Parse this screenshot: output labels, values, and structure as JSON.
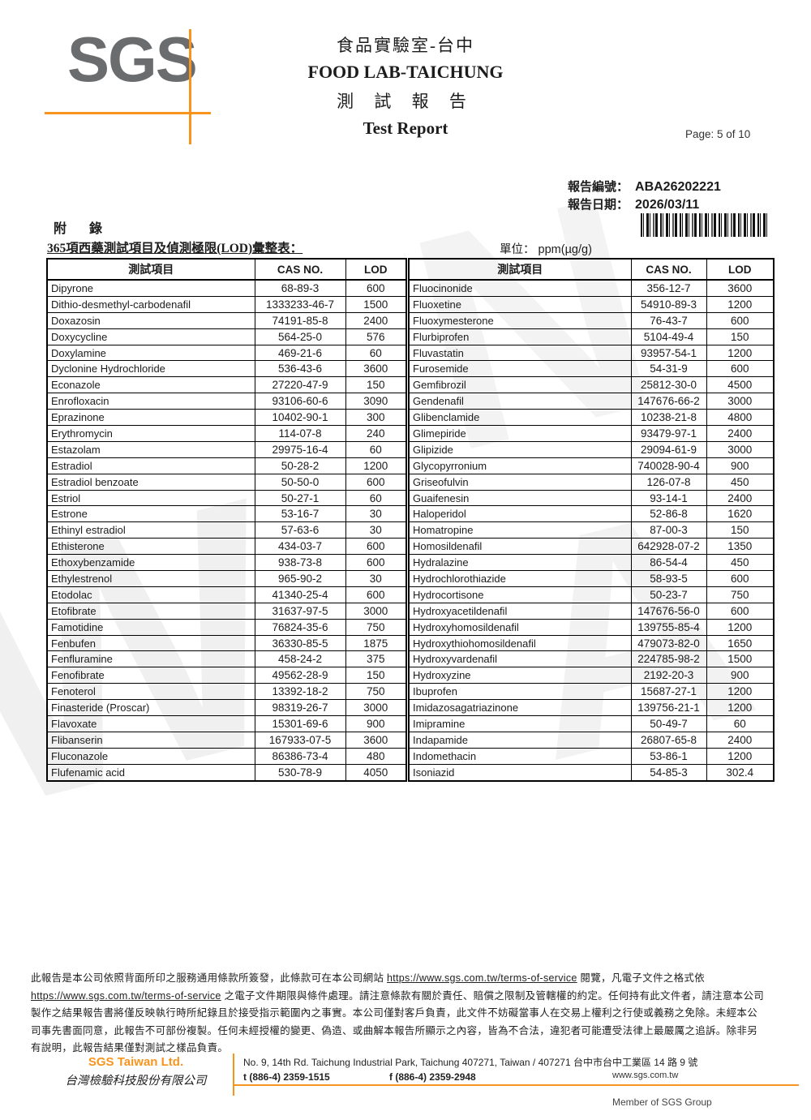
{
  "header": {
    "logo_text": "SGS",
    "lab_name_zh": "食品實驗室-台中",
    "lab_name_en": "FOOD LAB-TAICHUNG",
    "report_title_zh": "測 試 報 告",
    "report_title_en": "Test Report",
    "page_info": "Page: 5 of 10"
  },
  "report_meta": {
    "report_no_label": "報告編號：",
    "report_no": "ABA26202221",
    "report_date_label": "報告日期：",
    "report_date": "2026/03/11"
  },
  "appendix": {
    "section_label": "附 錄",
    "table_title": "365項西藥測試項目及偵測極限(LOD)彙整表：",
    "unit_label": "單位：",
    "unit_value": "ppm(µg/g)"
  },
  "table": {
    "headers": [
      "測試項目",
      "CAS NO.",
      "LOD"
    ],
    "left_rows": [
      [
        "Dipyrone",
        "68-89-3",
        "600"
      ],
      [
        "Dithio-desmethyl-carbodenafil",
        "1333233-46-7",
        "1500"
      ],
      [
        "Doxazosin",
        "74191-85-8",
        "2400"
      ],
      [
        "Doxycycline",
        "564-25-0",
        "576"
      ],
      [
        "Doxylamine",
        "469-21-6",
        "60"
      ],
      [
        "Dyclonine Hydrochloride",
        "536-43-6",
        "3600"
      ],
      [
        "Econazole",
        "27220-47-9",
        "150"
      ],
      [
        "Enrofloxacin",
        "93106-60-6",
        "3090"
      ],
      [
        "Eprazinone",
        "10402-90-1",
        "300"
      ],
      [
        "Erythromycin",
        "114-07-8",
        "240"
      ],
      [
        "Estazolam",
        "29975-16-4",
        "60"
      ],
      [
        "Estradiol",
        "50-28-2",
        "1200"
      ],
      [
        "Estradiol benzoate",
        "50-50-0",
        "600"
      ],
      [
        "Estriol",
        "50-27-1",
        "60"
      ],
      [
        "Estrone",
        "53-16-7",
        "30"
      ],
      [
        "Ethinyl estradiol",
        "57-63-6",
        "30"
      ],
      [
        "Ethisterone",
        "434-03-7",
        "600"
      ],
      [
        "Ethoxybenzamide",
        "938-73-8",
        "600"
      ],
      [
        "Ethylestrenol",
        "965-90-2",
        "30"
      ],
      [
        "Etodolac",
        "41340-25-4",
        "600"
      ],
      [
        "Etofibrate",
        "31637-97-5",
        "3000"
      ],
      [
        "Famotidine",
        "76824-35-6",
        "750"
      ],
      [
        "Fenbufen",
        "36330-85-5",
        "1875"
      ],
      [
        "Fenfluramine",
        "458-24-2",
        "375"
      ],
      [
        "Fenofibrate",
        "49562-28-9",
        "150"
      ],
      [
        "Fenoterol",
        "13392-18-2",
        "750"
      ],
      [
        "Finasteride (Proscar)",
        "98319-26-7",
        "3000"
      ],
      [
        "Flavoxate",
        "15301-69-6",
        "900"
      ],
      [
        "Flibanserin",
        "167933-07-5",
        "3600"
      ],
      [
        "Fluconazole",
        "86386-73-4",
        "480"
      ],
      [
        "Flufenamic acid",
        "530-78-9",
        "4050"
      ]
    ],
    "right_rows": [
      [
        "Fluocinonide",
        "356-12-7",
        "3600"
      ],
      [
        "Fluoxetine",
        "54910-89-3",
        "1200"
      ],
      [
        "Fluoxymesterone",
        "76-43-7",
        "600"
      ],
      [
        "Flurbiprofen",
        "5104-49-4",
        "150"
      ],
      [
        "Fluvastatin",
        "93957-54-1",
        "1200"
      ],
      [
        "Furosemide",
        "54-31-9",
        "600"
      ],
      [
        "Gemfibrozil",
        "25812-30-0",
        "4500"
      ],
      [
        "Gendenafil",
        "147676-66-2",
        "3000"
      ],
      [
        "Glibenclamide",
        "10238-21-8",
        "4800"
      ],
      [
        "Glimepiride",
        "93479-97-1",
        "2400"
      ],
      [
        "Glipizide",
        "29094-61-9",
        "3000"
      ],
      [
        "Glycopyrronium",
        "740028-90-4",
        "900"
      ],
      [
        "Griseofulvin",
        "126-07-8",
        "450"
      ],
      [
        "Guaifenesin",
        "93-14-1",
        "2400"
      ],
      [
        "Haloperidol",
        "52-86-8",
        "1620"
      ],
      [
        "Homatropine",
        "87-00-3",
        "150"
      ],
      [
        "Homosildenafil",
        "642928-07-2",
        "1350"
      ],
      [
        "Hydralazine",
        "86-54-4",
        "450"
      ],
      [
        "Hydrochlorothiazide",
        "58-93-5",
        "600"
      ],
      [
        "Hydrocortisone",
        "50-23-7",
        "750"
      ],
      [
        "Hydroxyacetildenafil",
        "147676-56-0",
        "600"
      ],
      [
        "Hydroxyhomosildenafil",
        "139755-85-4",
        "1200"
      ],
      [
        "Hydroxythiohomosildenafil",
        "479073-82-0",
        "1650"
      ],
      [
        "Hydroxyvardenafil",
        "224785-98-2",
        "1500"
      ],
      [
        "Hydroxyzine",
        "2192-20-3",
        "900"
      ],
      [
        "Ibuprofen",
        "15687-27-1",
        "1200"
      ],
      [
        "Imidazosagatriazinone",
        "139756-21-1",
        "1200"
      ],
      [
        "Imipramine",
        "50-49-7",
        "60"
      ],
      [
        "Indapamide",
        "26807-65-8",
        "2400"
      ],
      [
        "Indomethacin",
        "53-86-1",
        "1200"
      ],
      [
        "Isoniazid",
        "54-85-3",
        "302.4"
      ]
    ]
  },
  "disclaimer": {
    "line1_pre": "此報告是本公司依照背面所印之服務通用條款所簽發，此條款可在本公司網站 ",
    "line1_url": "https://www.sgs.com.tw/terms-of-service",
    "line1_post": " 閱覽，凡電子文件之格式依",
    "line2_url": "https://www.sgs.com.tw/terms-of-service",
    "line2_post": " 之電子文件期限與條件處理。請注意條款有關於責任、賠償之限制及管轄權的約定。任何持有此文件者，請注意本公司",
    "line3": "製作之結果報告書將僅反映執行時所紀錄且於接受指示範圍內之事實。本公司僅對客戶負責，此文件不妨礙當事人在交易上權利之行使或義務之免除。未經本公",
    "line4": "司事先書面同意，此報告不可部份複製。任何未經授權的變更、偽造、或曲解本報告所顯示之內容，皆為不合法，違犯者可能遭受法律上最嚴厲之追訴。除非另",
    "line5": "有說明，此報告結果僅對測試之樣品負責。"
  },
  "footer": {
    "company_en": "SGS Taiwan Ltd.",
    "company_zh": "台灣檢驗科技股份有限公司",
    "address": "No. 9, 14th Rd. Taichung Industrial Park, Taichung 407271, Taiwan / 407271 台中市台中工業區 14 路 9 號",
    "tel": "t (886-4) 2359-1515",
    "fax": "f (886-4) 2359-2948",
    "website": "www.sgs.com.tw",
    "member": "Member of SGS Group"
  },
  "colors": {
    "sgs_orange": "#F7941E",
    "sgs_gray": "#6A6C6E"
  }
}
